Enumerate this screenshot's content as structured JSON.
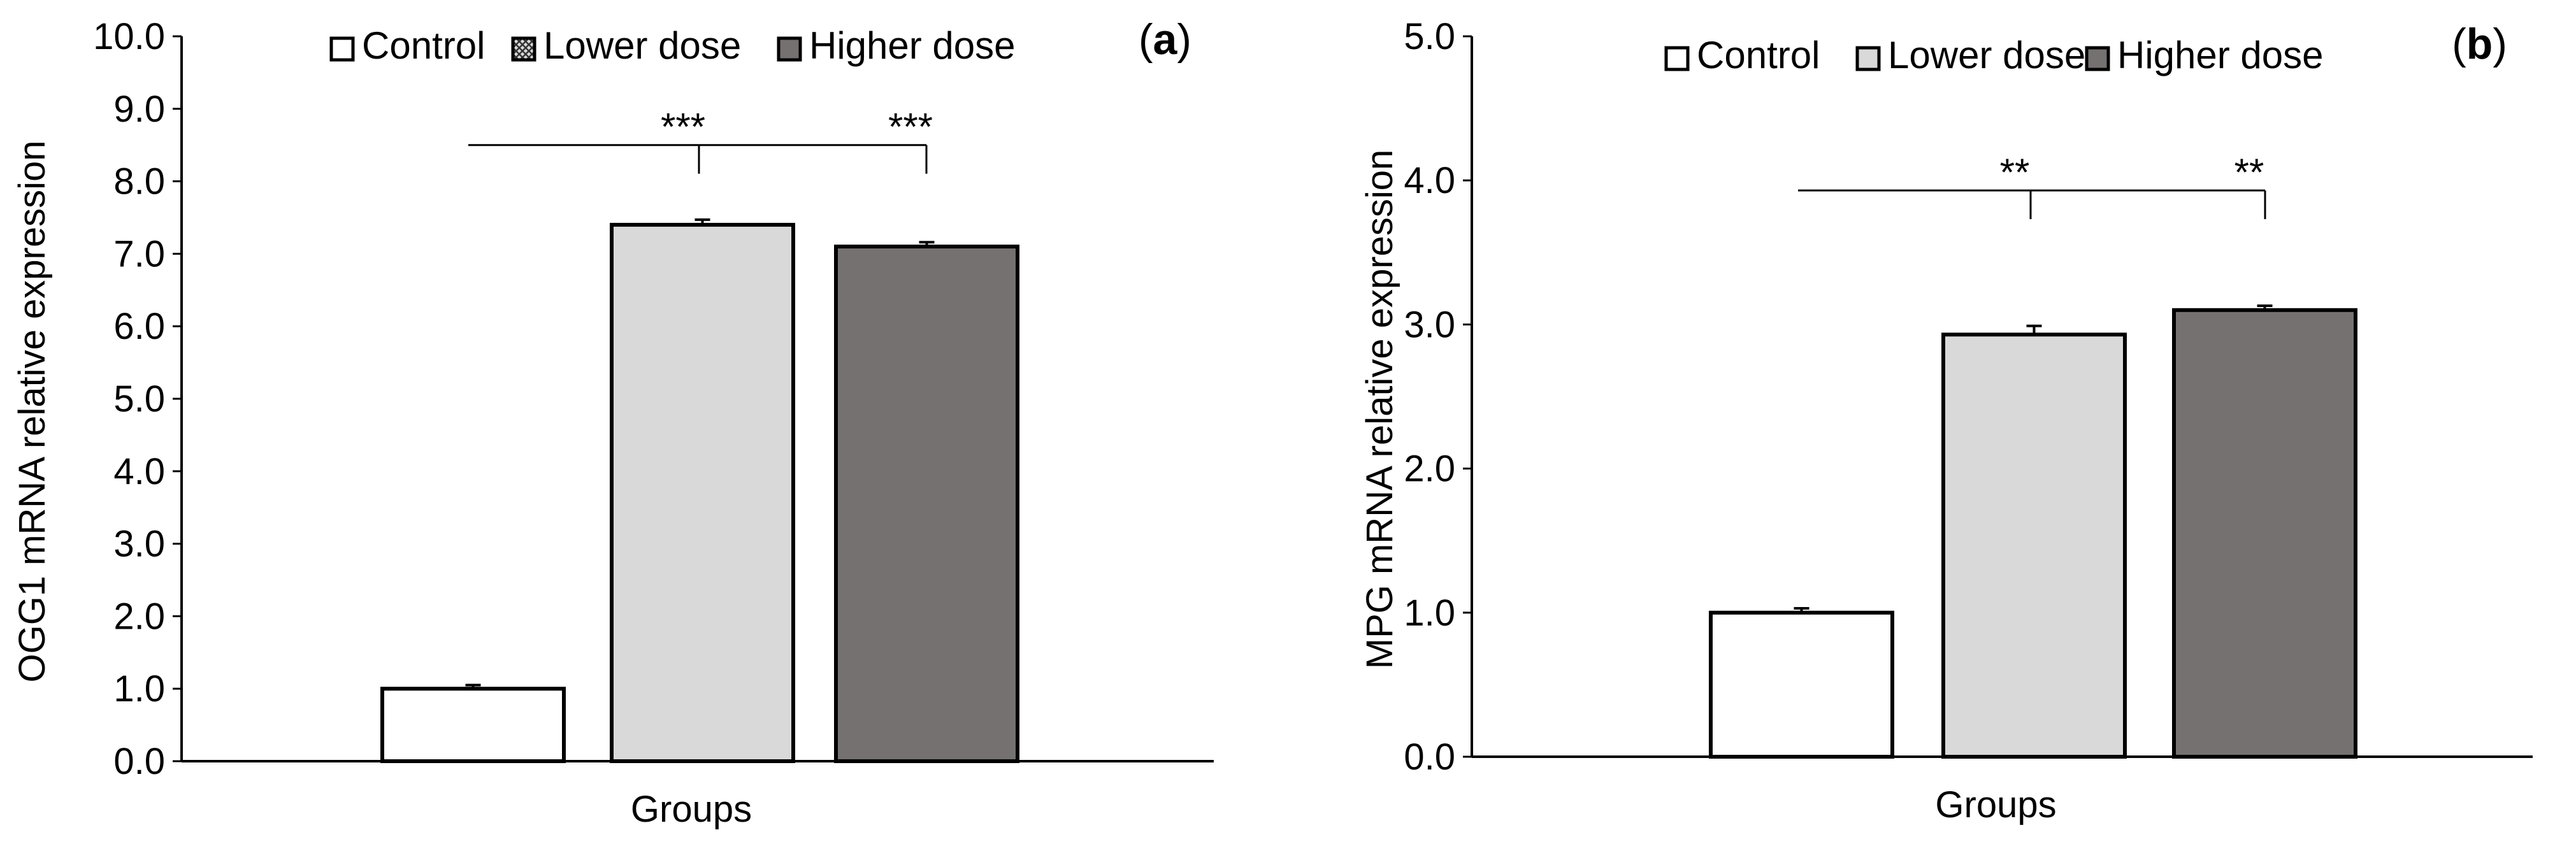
{
  "chart_data": [
    {
      "type": "bar",
      "panel_label": "a",
      "categories": [
        "Control",
        "Lower dose",
        "Higher dose"
      ],
      "values": [
        1.0,
        7.4,
        7.1
      ],
      "errors": [
        0.05,
        0.07,
        0.06
      ],
      "colors": [
        "#ffffff",
        "#d9d9d9",
        "#767171"
      ],
      "xlabel": "Groups",
      "ylabel": "OGG1 mRNA relative expression",
      "ylim": [
        0,
        10
      ],
      "yticks": [
        "0.0",
        "1.0",
        "2.0",
        "3.0",
        "4.0",
        "5.0",
        "6.0",
        "7.0",
        "8.0",
        "9.0",
        "10.0"
      ],
      "legend": [
        "Control",
        "Lower dose",
        "Higher dose"
      ],
      "legend_position": "top-center",
      "significance": {
        "y": 8.5,
        "labels": [
          "***",
          "***"
        ]
      }
    },
    {
      "type": "bar",
      "panel_label": "b",
      "categories": [
        "Control",
        "Lower dose",
        "Higher dose"
      ],
      "values": [
        1.0,
        2.93,
        3.1
      ],
      "errors": [
        0.03,
        0.06,
        0.03
      ],
      "colors": [
        "#ffffff",
        "#d9d9d9",
        "#767171"
      ],
      "xlabel": "Groups",
      "ylabel": "MPG mRNA relative expression",
      "ylim": [
        0,
        5
      ],
      "yticks": [
        "0.0",
        "1.0",
        "2.0",
        "3.0",
        "4.0",
        "5.0"
      ],
      "legend": [
        "Control",
        "Lower dose",
        "Higher dose"
      ],
      "legend_position": "top-center",
      "significance": {
        "y": 3.93,
        "labels": [
          "**",
          "**"
        ]
      }
    }
  ]
}
